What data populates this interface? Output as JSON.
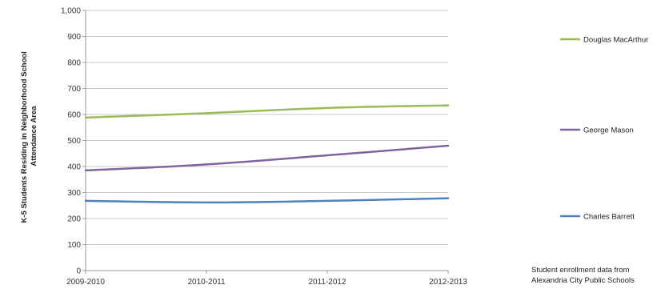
{
  "chart_data": {
    "type": "line",
    "categories": [
      "2009-2010",
      "2010-2011",
      "2011-2012",
      "2012-2013"
    ],
    "series": [
      {
        "name": "Douglas MacArthur",
        "values": [
          588,
          605,
          625,
          635
        ],
        "color": "#9bbb59"
      },
      {
        "name": "George Mason",
        "values": [
          385,
          408,
          443,
          480
        ],
        "color": "#8064a2"
      },
      {
        "name": "Charles Barrett",
        "values": [
          268,
          262,
          268,
          278
        ],
        "color": "#4f81bd"
      }
    ],
    "ylabel_lines": [
      "K-5 Students Residing in Neighborhood School",
      "Attendance Area"
    ],
    "ylim": [
      0,
      1000
    ],
    "yticks": [
      0,
      100,
      200,
      300,
      400,
      500,
      600,
      700,
      800,
      900,
      1000
    ],
    "ytick_labels": [
      "0",
      "100",
      "200",
      "300",
      "400",
      "500",
      "600",
      "700",
      "800",
      "900",
      "1,000"
    ],
    "grid": true,
    "legend_position": "right"
  },
  "note": {
    "line1": "Student enrollment data from",
    "line2": "Alexandria City Public Schools"
  }
}
